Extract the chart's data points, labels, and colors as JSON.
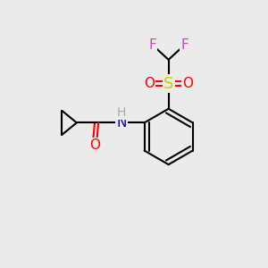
{
  "background_color": "#ebebeb",
  "bond_color": "#000000",
  "bond_width": 1.5,
  "atom_colors": {
    "O": "#ff0000",
    "N": "#0000cd",
    "S": "#cccc00",
    "F": "#cc44cc",
    "H": "#aaaaaa",
    "C": "#000000"
  },
  "font_size": 11,
  "figsize": [
    3.0,
    3.0
  ],
  "dpi": 100
}
